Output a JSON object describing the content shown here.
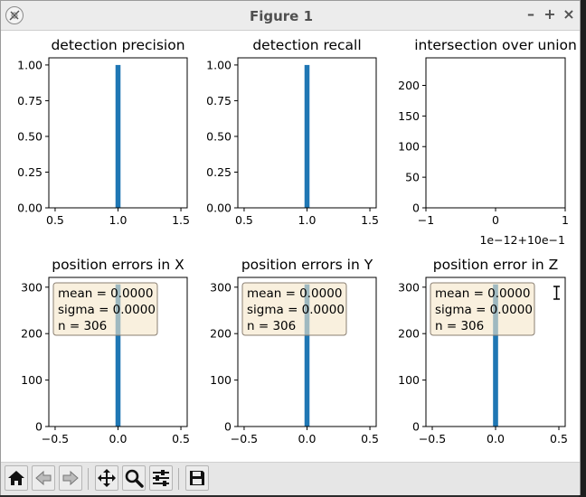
{
  "window": {
    "title": "Figure 1",
    "minimize": "–",
    "maximize": "+",
    "close": "×"
  },
  "colors": {
    "bar": "#1f77b4",
    "box_fill": "#f5e6c8",
    "box_edge": "#8a7f72",
    "titlebar": "#ececec"
  },
  "toolbar": {
    "icons": [
      "home-icon",
      "back-icon",
      "forward-icon",
      "pan-icon",
      "zoom-icon",
      "configure-subplots-icon",
      "save-icon"
    ]
  },
  "chart_data": [
    {
      "type": "bar",
      "title": "detection precision",
      "xlim": [
        0.45,
        1.55
      ],
      "ylim": [
        0,
        1.05
      ],
      "xticks": [
        "0.5",
        "1.0",
        "1.5"
      ],
      "xtick_values": [
        0.5,
        1.0,
        1.5
      ],
      "yticks": [
        "0.00",
        "0.25",
        "0.50",
        "0.75",
        "1.00"
      ],
      "ytick_values": [
        0,
        0.25,
        0.5,
        0.75,
        1.0
      ],
      "bars": [
        {
          "x": 1.0,
          "width": 0.04,
          "value": 1.0
        }
      ]
    },
    {
      "type": "bar",
      "title": "detection recall",
      "xlim": [
        0.45,
        1.55
      ],
      "ylim": [
        0,
        1.05
      ],
      "xticks": [
        "0.5",
        "1.0",
        "1.5"
      ],
      "xtick_values": [
        0.5,
        1.0,
        1.5
      ],
      "yticks": [
        "0.00",
        "0.25",
        "0.50",
        "0.75",
        "1.00"
      ],
      "ytick_values": [
        0,
        0.25,
        0.5,
        0.75,
        1.0
      ],
      "bars": [
        {
          "x": 1.0,
          "width": 0.04,
          "value": 1.0
        }
      ]
    },
    {
      "type": "bar",
      "title": "intersection over union",
      "xlim": [
        -1,
        1
      ],
      "ylim": [
        0,
        245
      ],
      "xticks": [
        "−1",
        "0",
        "1"
      ],
      "xtick_values": [
        -1,
        0,
        1
      ],
      "yticks": [
        "0",
        "50",
        "100",
        "150",
        "200"
      ],
      "ytick_values": [
        0,
        50,
        100,
        150,
        200
      ],
      "offset_text": "1e−12+10e−1",
      "bars": []
    },
    {
      "type": "bar",
      "title": "position errors in X",
      "xlim": [
        -0.55,
        0.55
      ],
      "ylim": [
        0,
        321
      ],
      "xticks": [
        "−0.5",
        "0.0",
        "0.5"
      ],
      "xtick_values": [
        -0.5,
        0,
        0.5
      ],
      "yticks": [
        "0",
        "100",
        "200",
        "300"
      ],
      "ytick_values": [
        0,
        100,
        200,
        300
      ],
      "bars": [
        {
          "x": 0.0,
          "width": 0.04,
          "value": 306
        }
      ],
      "stats": [
        "mean = 0.0000",
        "sigma = 0.0000",
        "n = 306"
      ]
    },
    {
      "type": "bar",
      "title": "position errors in Y",
      "xlim": [
        -0.55,
        0.55
      ],
      "ylim": [
        0,
        321
      ],
      "xticks": [
        "−0.5",
        "0.0",
        "0.5"
      ],
      "xtick_values": [
        -0.5,
        0,
        0.5
      ],
      "yticks": [
        "0",
        "100",
        "200",
        "300"
      ],
      "ytick_values": [
        0,
        100,
        200,
        300
      ],
      "bars": [
        {
          "x": 0.0,
          "width": 0.04,
          "value": 306
        }
      ],
      "stats": [
        "mean = 0.0000",
        "sigma = 0.0000",
        "n = 306"
      ]
    },
    {
      "type": "bar",
      "title": "position error in Z",
      "xlim": [
        -0.55,
        0.55
      ],
      "ylim": [
        0,
        321
      ],
      "xticks": [
        "−0.5",
        "0.0",
        "0.5"
      ],
      "xtick_values": [
        -0.5,
        0,
        0.5
      ],
      "yticks": [
        "0",
        "100",
        "200",
        "300"
      ],
      "ytick_values": [
        0,
        100,
        200,
        300
      ],
      "bars": [
        {
          "x": 0.0,
          "width": 0.04,
          "value": 306
        }
      ],
      "stats": [
        "mean = 0.0000",
        "sigma = 0.0000",
        "n = 306"
      ]
    }
  ]
}
